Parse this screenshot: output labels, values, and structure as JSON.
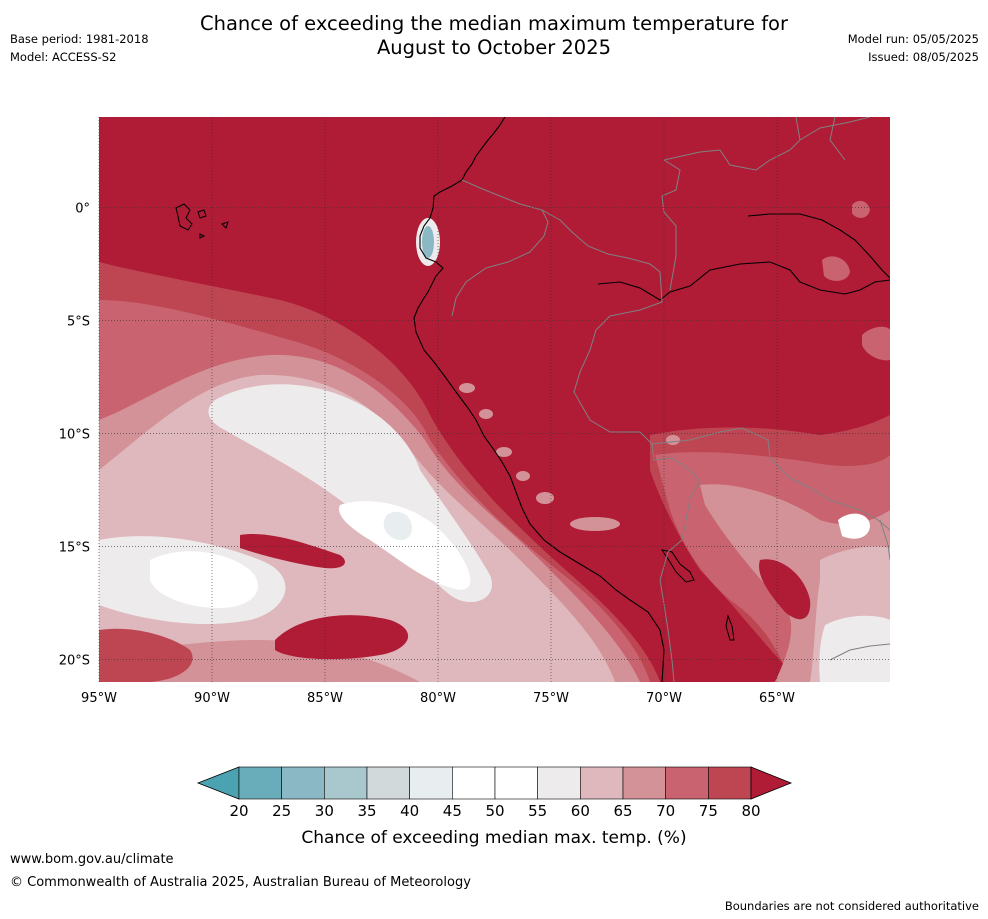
{
  "header": {
    "title_line1": "Chance of exceeding the median maximum temperature for",
    "title_line2": "August to October 2025",
    "base_period": "Base period: 1981-2018",
    "model": "Model: ACCESS-S2",
    "model_run": "Model run: 05/05/2025",
    "issued": "Issued: 08/05/2025"
  },
  "map": {
    "lat_labels": [
      "0°",
      "5°S",
      "10°S",
      "15°S",
      "20°S"
    ],
    "lat_values": [
      0,
      -5,
      -10,
      -15,
      -20
    ],
    "lon_labels": [
      "95°W",
      "90°W",
      "85°W",
      "80°W",
      "75°W",
      "70°W",
      "65°W"
    ],
    "lon_values": [
      -95,
      -90,
      -85,
      -80,
      -75,
      -70,
      -65
    ],
    "extent": {
      "lon": [
        -95,
        -60
      ],
      "lat": [
        -21,
        4
      ]
    },
    "background_category": "80+",
    "coast_color": "#000000",
    "border_color": "#808080"
  },
  "colorbar": {
    "label": "Chance of exceeding median max. temp. (%)",
    "ticks": [
      "20",
      "25",
      "30",
      "35",
      "40",
      "45",
      "50",
      "55",
      "60",
      "65",
      "70",
      "75",
      "80"
    ],
    "low_color": "#4ba3b2",
    "colors": [
      "#6aadba",
      "#8ab8c4",
      "#a8c8ce",
      "#d1d9db",
      "#e8eef0",
      "#ffffff",
      "#ffffff",
      "#edebec",
      "#dfb8bd",
      "#d39298",
      "#c9636f",
      "#be4653"
    ],
    "high_color": "#b01c36"
  },
  "footer": {
    "url": "www.bom.gov.au/climate",
    "copyright": "© Commonwealth of Australia 2025, Australian Bureau of Meteorology",
    "disclaimer": "Boundaries are not considered authoritative"
  }
}
